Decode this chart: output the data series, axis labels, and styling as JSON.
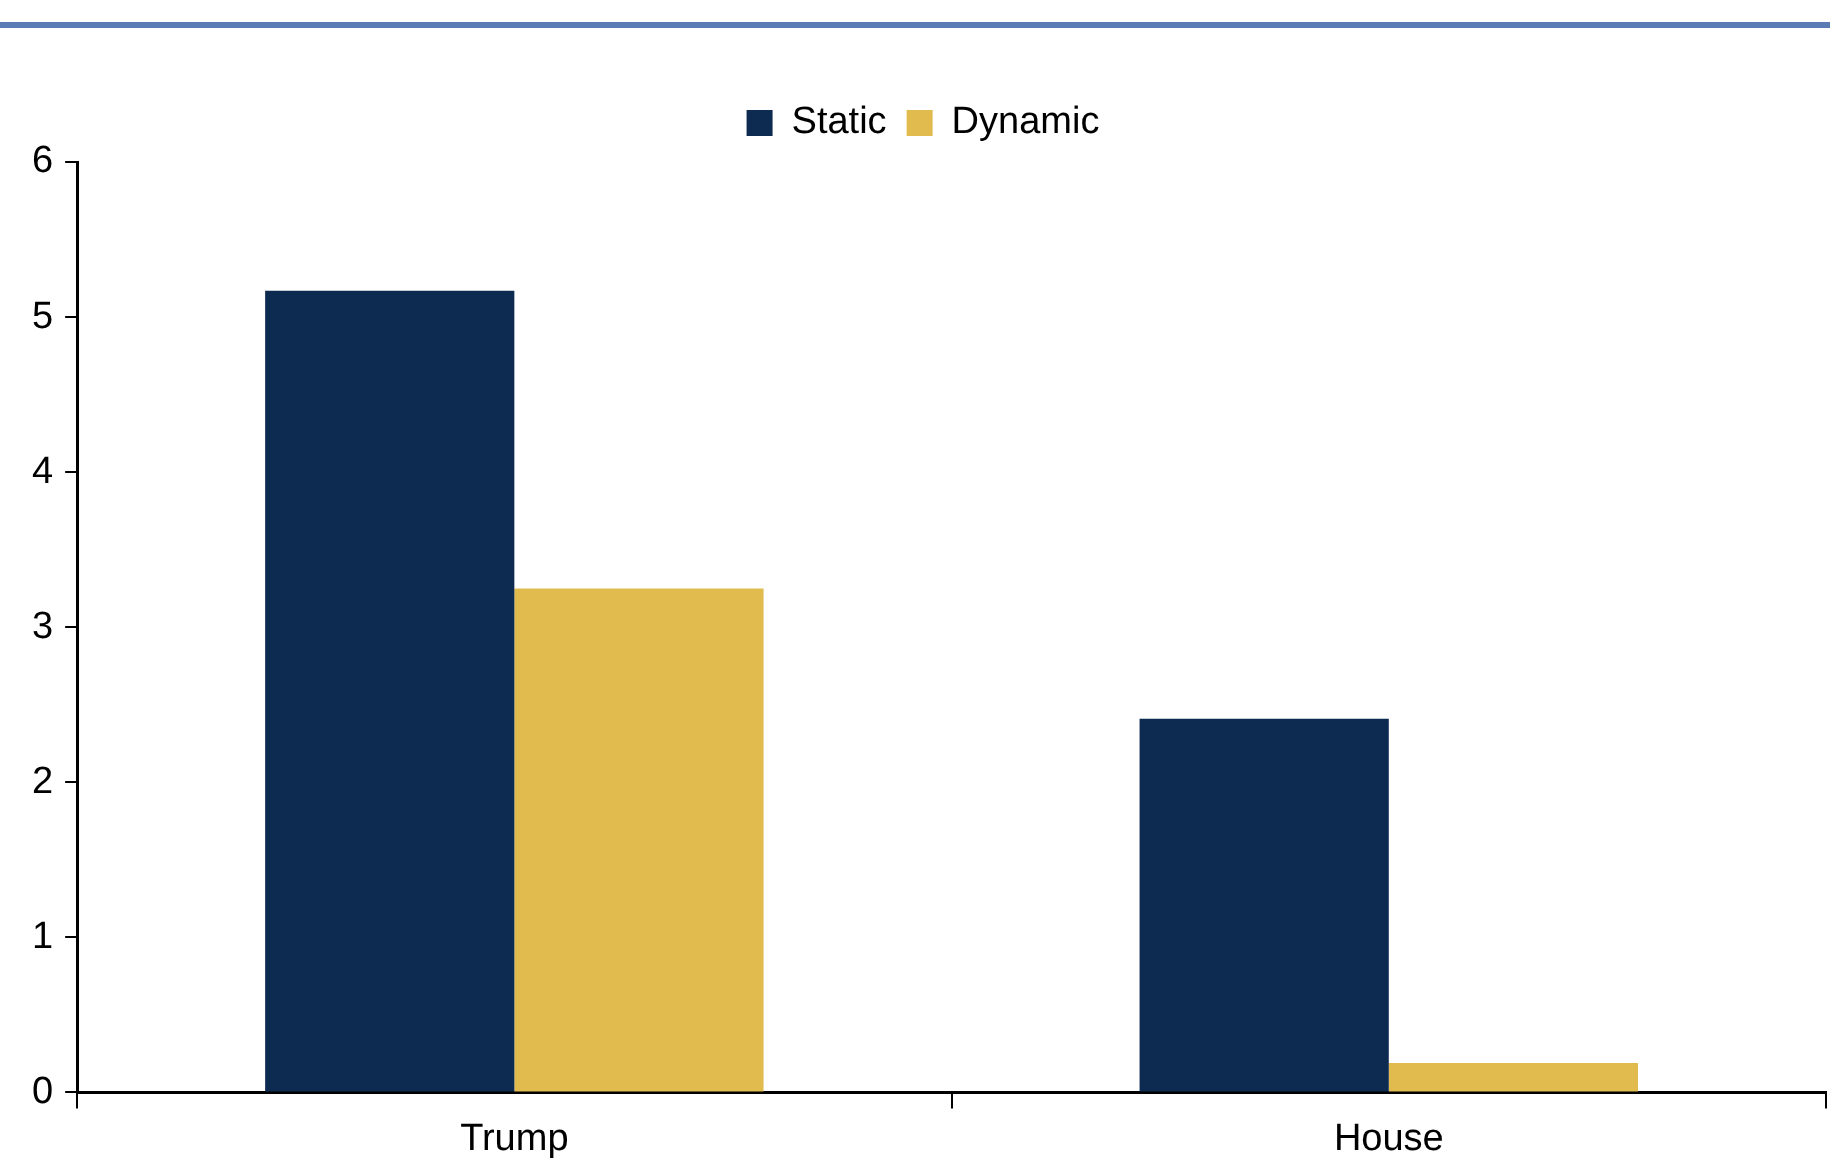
{
  "chart_data": {
    "type": "bar",
    "categories": [
      "Trump",
      "House"
    ],
    "series": [
      {
        "name": "Static",
        "color": "#0d2a50",
        "values": [
          5.17,
          2.41
        ]
      },
      {
        "name": "Dynamic",
        "color": "#e1bb4e",
        "values": [
          3.25,
          0.19
        ]
      }
    ],
    "ylim": [
      0,
      6
    ],
    "yticks": [
      0,
      1,
      2,
      3,
      4,
      5,
      6
    ],
    "grid": false,
    "legend": "top"
  }
}
